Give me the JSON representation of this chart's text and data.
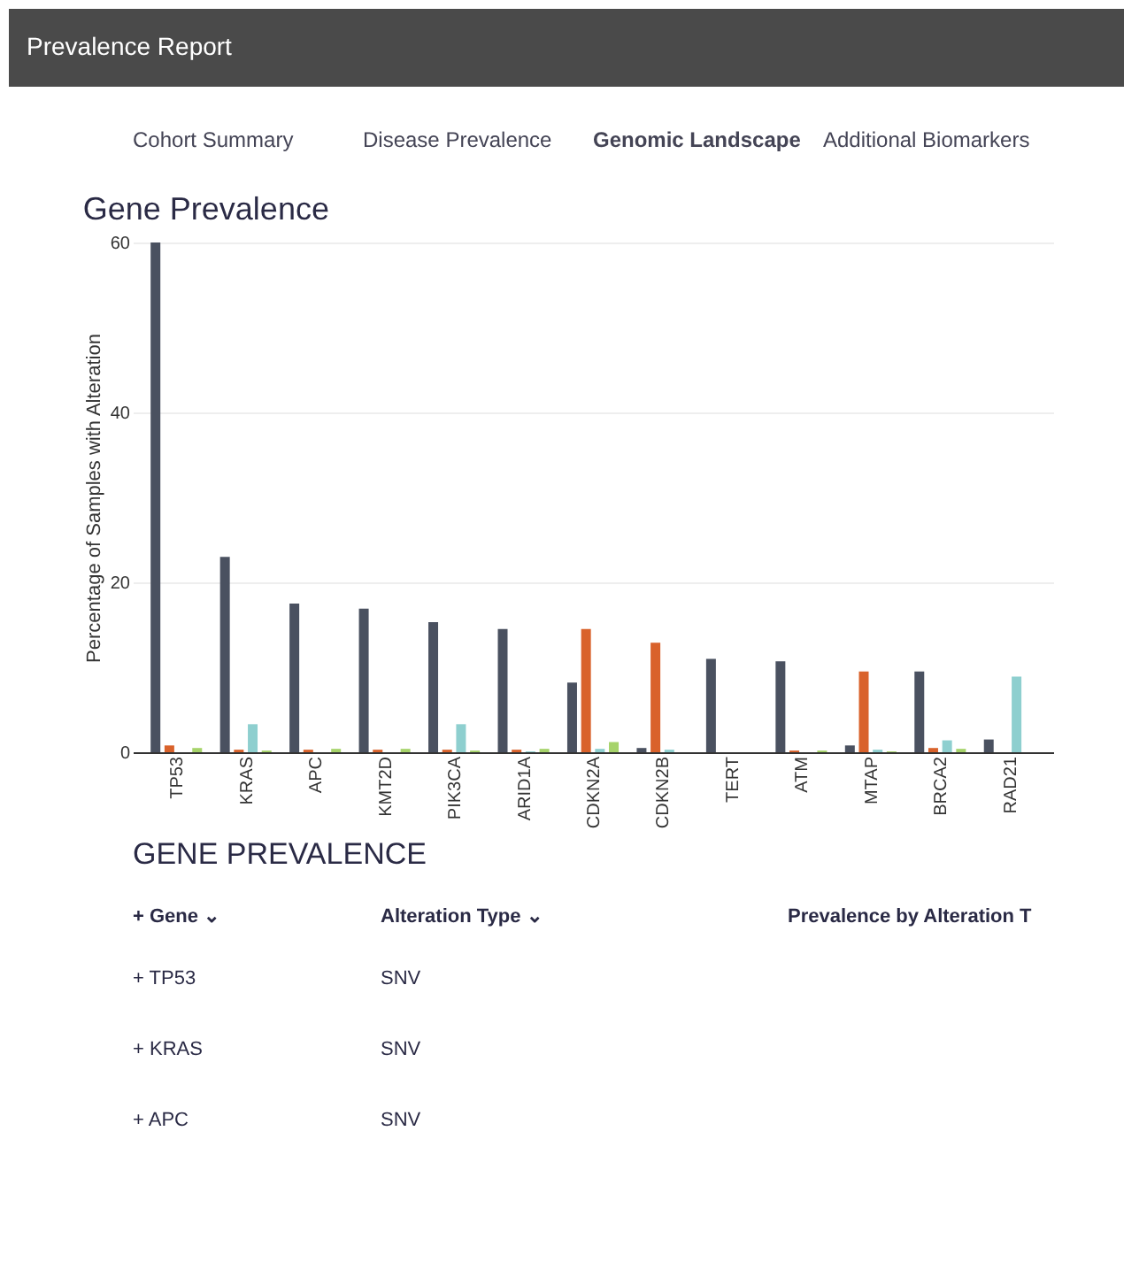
{
  "chart_data": {
    "type": "bar",
    "title": "Gene Prevalence",
    "ylabel": "Percentage of Samples with Alteration",
    "categories": [
      "TP53",
      "KRAS",
      "APC",
      "KMT2D",
      "PIK3CA",
      "ARID1A",
      "CDKN2A",
      "CDKN2B",
      "TERT",
      "ATM",
      "MTAP",
      "BRCA2",
      "RAD21"
    ],
    "series": [
      {
        "color": "#4a5160",
        "values": [
          60,
          23,
          17.5,
          16.9,
          15.3,
          14.5,
          8.2,
          0.5,
          11.0,
          10.7,
          0.8,
          9.5,
          1.5
        ]
      },
      {
        "color": "#d9622b",
        "values": [
          0.8,
          0.3,
          0.3,
          0.3,
          0.3,
          0.3,
          14.5,
          12.9,
          0,
          0.2,
          9.5,
          0.5,
          0
        ]
      },
      {
        "color": "#8ecfcf",
        "values": [
          0,
          3.3,
          0,
          0,
          3.3,
          0.1,
          0.4,
          0.3,
          0,
          0,
          0.3,
          1.4,
          8.9
        ]
      },
      {
        "color": "#a6d36a",
        "values": [
          0.5,
          0.2,
          0.4,
          0.4,
          0.2,
          0.4,
          1.2,
          0,
          0,
          0.2,
          0.1,
          0.4,
          null
        ]
      }
    ],
    "ylim": [
      0,
      60
    ],
    "yticks": [
      0,
      20,
      40,
      60
    ],
    "grid": "y",
    "annotations": [
      "Prevalence Report",
      "Cohort Summary",
      "Disease Prevalence",
      "Genomic Landscape",
      "Additional Biomarkers",
      "GENE PREVALENCE",
      "+ Gene ⌄",
      "Alteration Type ⌄",
      "Prevalence by Alteration T",
      "+ TP53",
      "SNV",
      "+ KRAS",
      "SNV",
      "+ APC",
      "SNV"
    ]
  }
}
